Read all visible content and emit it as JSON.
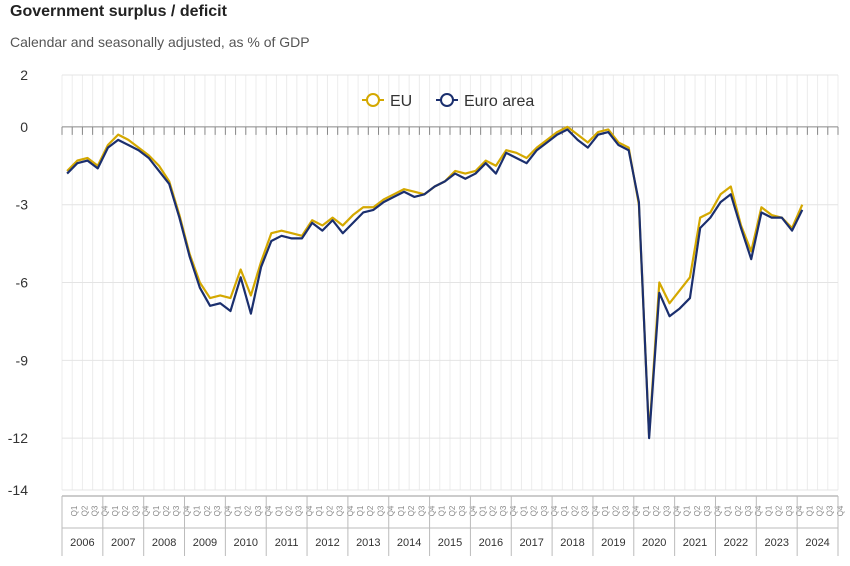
{
  "title": "Government surplus / deficit",
  "subtitle": "Calendar and seasonally adjusted, as % of GDP",
  "chart_data": {
    "type": "line",
    "ylim": [
      -14,
      2
    ],
    "yticks": [
      2,
      0,
      -3,
      -6,
      -9,
      -12,
      -14
    ],
    "quarter_labels": [
      "Q1",
      "Q2",
      "Q3",
      "Q4"
    ],
    "years": [
      "2006",
      "2007",
      "2008",
      "2009",
      "2010",
      "2011",
      "2012",
      "2013",
      "2014",
      "2015",
      "2016",
      "2017",
      "2018",
      "2019",
      "2020",
      "2021",
      "2022",
      "2023",
      "2024"
    ],
    "legend_position": "top-center",
    "grid": true,
    "series": [
      {
        "name": "EU",
        "color": "#d4a800",
        "values": [
          -1.7,
          -1.3,
          -1.2,
          -1.5,
          -0.7,
          -0.3,
          -0.5,
          -0.8,
          -1.1,
          -1.5,
          -2.1,
          -3.4,
          -4.9,
          -6.0,
          -6.6,
          -6.5,
          -6.6,
          -5.5,
          -6.5,
          -5.2,
          -4.1,
          -4.0,
          -4.1,
          -4.2,
          -3.6,
          -3.8,
          -3.5,
          -3.8,
          -3.4,
          -3.1,
          -3.1,
          -2.8,
          -2.6,
          -2.4,
          -2.5,
          -2.6,
          -2.3,
          -2.1,
          -1.7,
          -1.8,
          -1.7,
          -1.3,
          -1.5,
          -0.9,
          -1.0,
          -1.2,
          -0.8,
          -0.5,
          -0.2,
          0.0,
          -0.3,
          -0.6,
          -0.2,
          -0.1,
          -0.6,
          -0.8,
          -3.0,
          -11.9,
          -6.0,
          -6.8,
          -6.3,
          -5.8,
          -3.5,
          -3.3,
          -2.6,
          -2.3,
          -3.8,
          -4.8,
          -3.1,
          -3.4,
          -3.5,
          -3.9,
          -3.0,
          null,
          null
        ]
      },
      {
        "name": "Euro area",
        "color": "#1b2f6e",
        "values": [
          -1.8,
          -1.4,
          -1.3,
          -1.6,
          -0.8,
          -0.5,
          -0.7,
          -0.9,
          -1.2,
          -1.7,
          -2.2,
          -3.5,
          -5.0,
          -6.2,
          -6.9,
          -6.8,
          -7.1,
          -5.8,
          -7.2,
          -5.4,
          -4.4,
          -4.2,
          -4.3,
          -4.3,
          -3.7,
          -4.0,
          -3.6,
          -4.1,
          -3.7,
          -3.3,
          -3.2,
          -2.9,
          -2.7,
          -2.5,
          -2.7,
          -2.6,
          -2.3,
          -2.1,
          -1.8,
          -2.0,
          -1.8,
          -1.4,
          -1.8,
          -1.0,
          -1.2,
          -1.4,
          -0.9,
          -0.6,
          -0.3,
          -0.1,
          -0.5,
          -0.8,
          -0.3,
          -0.2,
          -0.7,
          -0.9,
          -2.9,
          -12.0,
          -6.4,
          -7.3,
          -7.0,
          -6.6,
          -3.9,
          -3.5,
          -2.9,
          -2.6,
          -3.9,
          -5.1,
          -3.3,
          -3.5,
          -3.5,
          -4.0,
          -3.2,
          null,
          null
        ]
      }
    ]
  }
}
